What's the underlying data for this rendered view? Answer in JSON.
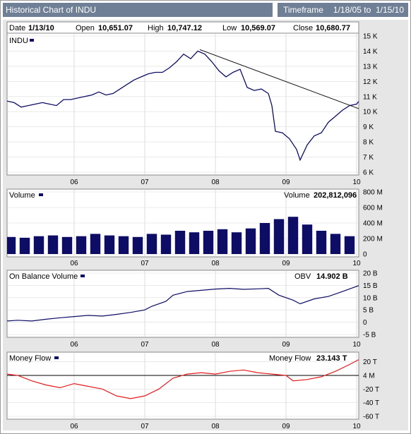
{
  "header": {
    "title": "Historical Chart of INDU",
    "timeframe_label": "Timeframe",
    "timeframe_start": "1/18/05 to",
    "timeframe_end": "1/15/10"
  },
  "quote": {
    "date_label": "Date",
    "date": "1/13/10",
    "open_label": "Open",
    "open": "10,651.07",
    "high_label": "High",
    "high": "10,747.12",
    "low_label": "Low",
    "low": "10,569.07",
    "close_label": "Close",
    "close": "10,680.77"
  },
  "colors": {
    "price": "#0d0d66",
    "volume": "#0d0d66",
    "obv": "#0d0d66",
    "money_flow": "#e41c1c",
    "panel_border": "#8a8a8a",
    "header_bg": "#6f7f95"
  },
  "chart_data": [
    {
      "type": "line",
      "series_label": "INDU",
      "x_tick_labels": [
        "06",
        "07",
        "08",
        "09",
        "10"
      ],
      "y_tick_labels": [
        "6 K",
        "7 K",
        "8 K",
        "9 K",
        "10 K",
        "11 K",
        "12 K",
        "13 K",
        "14 K",
        "15 K"
      ],
      "ylim": [
        6000,
        15000
      ],
      "grid": true,
      "x": [
        2005.05,
        2005.15,
        2005.25,
        2005.35,
        2005.45,
        2005.55,
        2005.65,
        2005.75,
        2005.85,
        2005.95,
        2006.05,
        2006.15,
        2006.25,
        2006.35,
        2006.45,
        2006.55,
        2006.65,
        2006.75,
        2006.85,
        2006.95,
        2007.05,
        2007.15,
        2007.25,
        2007.35,
        2007.45,
        2007.55,
        2007.65,
        2007.75,
        2007.85,
        2007.95,
        2008.05,
        2008.15,
        2008.25,
        2008.35,
        2008.45,
        2008.55,
        2008.65,
        2008.75,
        2008.8,
        2008.85,
        2008.95,
        2009.05,
        2009.15,
        2009.2,
        2009.3,
        2009.4,
        2009.5,
        2009.6,
        2009.7,
        2009.8,
        2009.9,
        2010.0,
        2010.03
      ],
      "y": [
        10700,
        10600,
        10300,
        10400,
        10500,
        10600,
        10500,
        10400,
        10800,
        10800,
        10900,
        11000,
        11100,
        11300,
        11100,
        11200,
        11500,
        11800,
        12100,
        12300,
        12500,
        12600,
        12600,
        12900,
        13300,
        13800,
        13500,
        14000,
        13800,
        13300,
        12700,
        12300,
        12600,
        12800,
        11600,
        11400,
        11500,
        11200,
        10400,
        8700,
        8600,
        8200,
        7500,
        6800,
        7800,
        8400,
        8600,
        9300,
        9700,
        10100,
        10400,
        10500,
        10680
      ],
      "trendline": {
        "x": [
          2007.78,
          2010.03
        ],
        "y": [
          14100,
          10200
        ]
      }
    },
    {
      "type": "bar",
      "series_label": "Volume",
      "value_label": "Volume",
      "value": "202,812,096",
      "x_tick_labels": [
        "06",
        "07",
        "08",
        "09",
        "10"
      ],
      "y_tick_labels": [
        "0",
        "200 M",
        "400 M",
        "600 M",
        "800 M"
      ],
      "ylim": [
        0,
        800
      ],
      "unit": "M",
      "grid": true,
      "x": [
        2005.1,
        2005.3,
        2005.5,
        2005.7,
        2005.9,
        2006.1,
        2006.3,
        2006.5,
        2006.7,
        2006.9,
        2007.1,
        2007.3,
        2007.5,
        2007.7,
        2007.9,
        2008.1,
        2008.3,
        2008.5,
        2008.7,
        2008.9,
        2009.1,
        2009.3,
        2009.5,
        2009.7,
        2009.9
      ],
      "y": [
        220,
        210,
        230,
        240,
        220,
        230,
        260,
        240,
        230,
        220,
        260,
        250,
        300,
        280,
        300,
        320,
        280,
        330,
        400,
        450,
        480,
        380,
        300,
        260,
        230
      ]
    },
    {
      "type": "line",
      "series_label": "On Balance Volume",
      "value_label": "OBV",
      "value": "14.902 B",
      "x_tick_labels": [
        "06",
        "07",
        "08",
        "09",
        "10"
      ],
      "y_tick_labels": [
        "-5 B",
        "0",
        "5 B",
        "10 B",
        "15 B",
        "20 B"
      ],
      "ylim": [
        -5,
        20
      ],
      "unit": "B",
      "grid": true,
      "x": [
        2005.05,
        2005.2,
        2005.4,
        2005.6,
        2005.8,
        2006.0,
        2006.2,
        2006.4,
        2006.6,
        2006.8,
        2007.0,
        2007.1,
        2007.3,
        2007.4,
        2007.6,
        2007.8,
        2008.0,
        2008.2,
        2008.4,
        2008.6,
        2008.75,
        2008.9,
        2009.1,
        2009.2,
        2009.4,
        2009.6,
        2009.8,
        2010.03
      ],
      "y": [
        0.5,
        0.8,
        0.5,
        1.2,
        1.8,
        2.3,
        2.8,
        2.5,
        3.2,
        4.0,
        5.0,
        6.5,
        8.5,
        11.0,
        12.5,
        13.0,
        13.5,
        13.8,
        13.4,
        13.6,
        13.8,
        11.0,
        9.0,
        7.5,
        9.5,
        10.5,
        12.5,
        14.902
      ]
    },
    {
      "type": "line",
      "series_label": "Money Flow",
      "value_label": "Money Flow",
      "value": "23.143 T",
      "x_tick_labels": [
        "06",
        "07",
        "08",
        "09",
        "10"
      ],
      "y_tick_labels": [
        "-60 T",
        "-40 T",
        "-20 T",
        "4 M",
        "20 T"
      ],
      "ylim": [
        -60,
        30
      ],
      "unit": "T",
      "grid": true,
      "reference_line": 0,
      "x": [
        2005.05,
        2005.2,
        2005.4,
        2005.6,
        2005.8,
        2006.0,
        2006.2,
        2006.4,
        2006.6,
        2006.8,
        2007.0,
        2007.2,
        2007.4,
        2007.6,
        2007.8,
        2008.0,
        2008.2,
        2008.4,
        2008.6,
        2008.8,
        2009.0,
        2009.1,
        2009.3,
        2009.5,
        2009.7,
        2009.9,
        2010.03
      ],
      "y": [
        2,
        0,
        -8,
        -14,
        -18,
        -12,
        -16,
        -20,
        -30,
        -34,
        -30,
        -20,
        -4,
        2,
        4,
        2,
        6,
        8,
        4,
        2,
        0,
        -8,
        -6,
        -2,
        6,
        16,
        23.143
      ]
    }
  ]
}
